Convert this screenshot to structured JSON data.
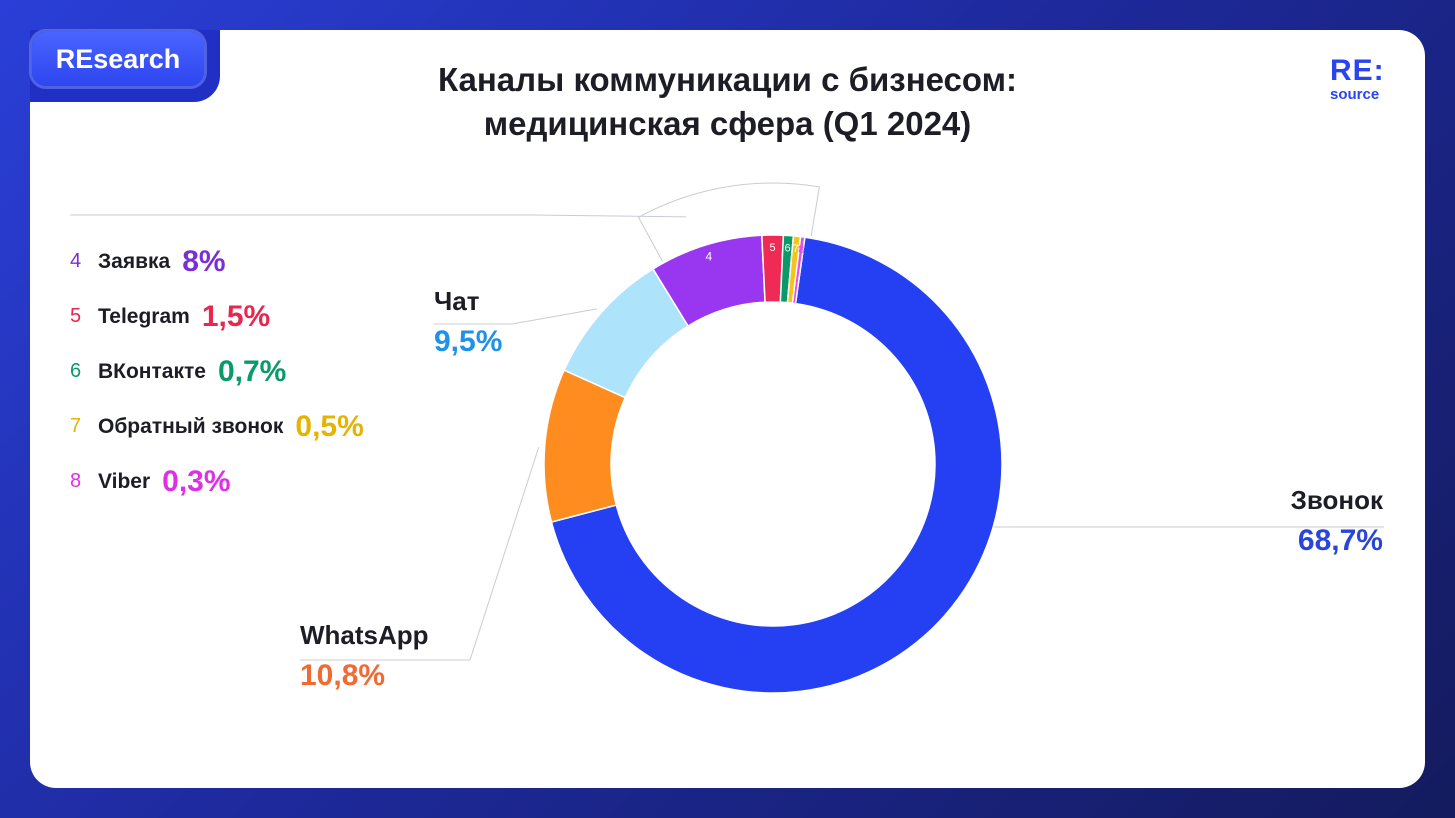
{
  "badge": "REsearch",
  "title_line1": "Каналы коммуникации с бизнесом:",
  "title_line2": "медицинская сфера (Q1 2024)",
  "logo": {
    "line1": "RE:",
    "line2": "source"
  },
  "colors": {
    "accent": "#2a45f0"
  },
  "chart_data": {
    "type": "pie",
    "subtype": "donut",
    "slices": [
      {
        "name": "Звонок",
        "value": 68.7,
        "label": "68,7%",
        "color": "#2440f2"
      },
      {
        "name": "WhatsApp",
        "value": 10.8,
        "label": "10,8%",
        "color": "#ff8c1f"
      },
      {
        "name": "Чат",
        "value": 9.5,
        "label": "9,5%",
        "color": "#aee3fc"
      },
      {
        "name": "Заявка",
        "value": 8,
        "label": "8%",
        "color": "#9836f0",
        "num": "4"
      },
      {
        "name": "Telegram",
        "value": 1.5,
        "label": "1,5%",
        "color": "#ee2a55",
        "num": "5"
      },
      {
        "name": "ВКонтакте",
        "value": 0.7,
        "label": "0,7%",
        "color": "#0a9a6a",
        "num": "6"
      },
      {
        "name": "Обратный звонок",
        "value": 0.5,
        "label": "0,5%",
        "color": "#f5c41b",
        "num": "7"
      },
      {
        "name": "Viber",
        "value": 0.3,
        "label": "0,3%",
        "color": "#e64ee8",
        "num": "8"
      }
    ]
  },
  "labels": {
    "zvonok": {
      "name": "Звонок",
      "value": "68,7%",
      "color": "#2a45d8"
    },
    "whatsapp": {
      "name": "WhatsApp",
      "value": "10,8%",
      "color": "#f06a33"
    },
    "chat": {
      "name": "Чат",
      "value": "9,5%",
      "color": "#1e92e6"
    }
  },
  "legend": [
    {
      "num": "4",
      "name": "Заявка",
      "value": "8%",
      "color": "#7a2fd6"
    },
    {
      "num": "5",
      "name": "Telegram",
      "value": "1,5%",
      "color": "#e8264f"
    },
    {
      "num": "6",
      "name": "ВКонтакте",
      "value": "0,7%",
      "color": "#0a9a6a"
    },
    {
      "num": "7",
      "name": "Обратный звонок",
      "value": "0,5%",
      "color": "#e6b400"
    },
    {
      "num": "8",
      "name": "Viber",
      "value": "0,3%",
      "color": "#e030e6"
    }
  ]
}
